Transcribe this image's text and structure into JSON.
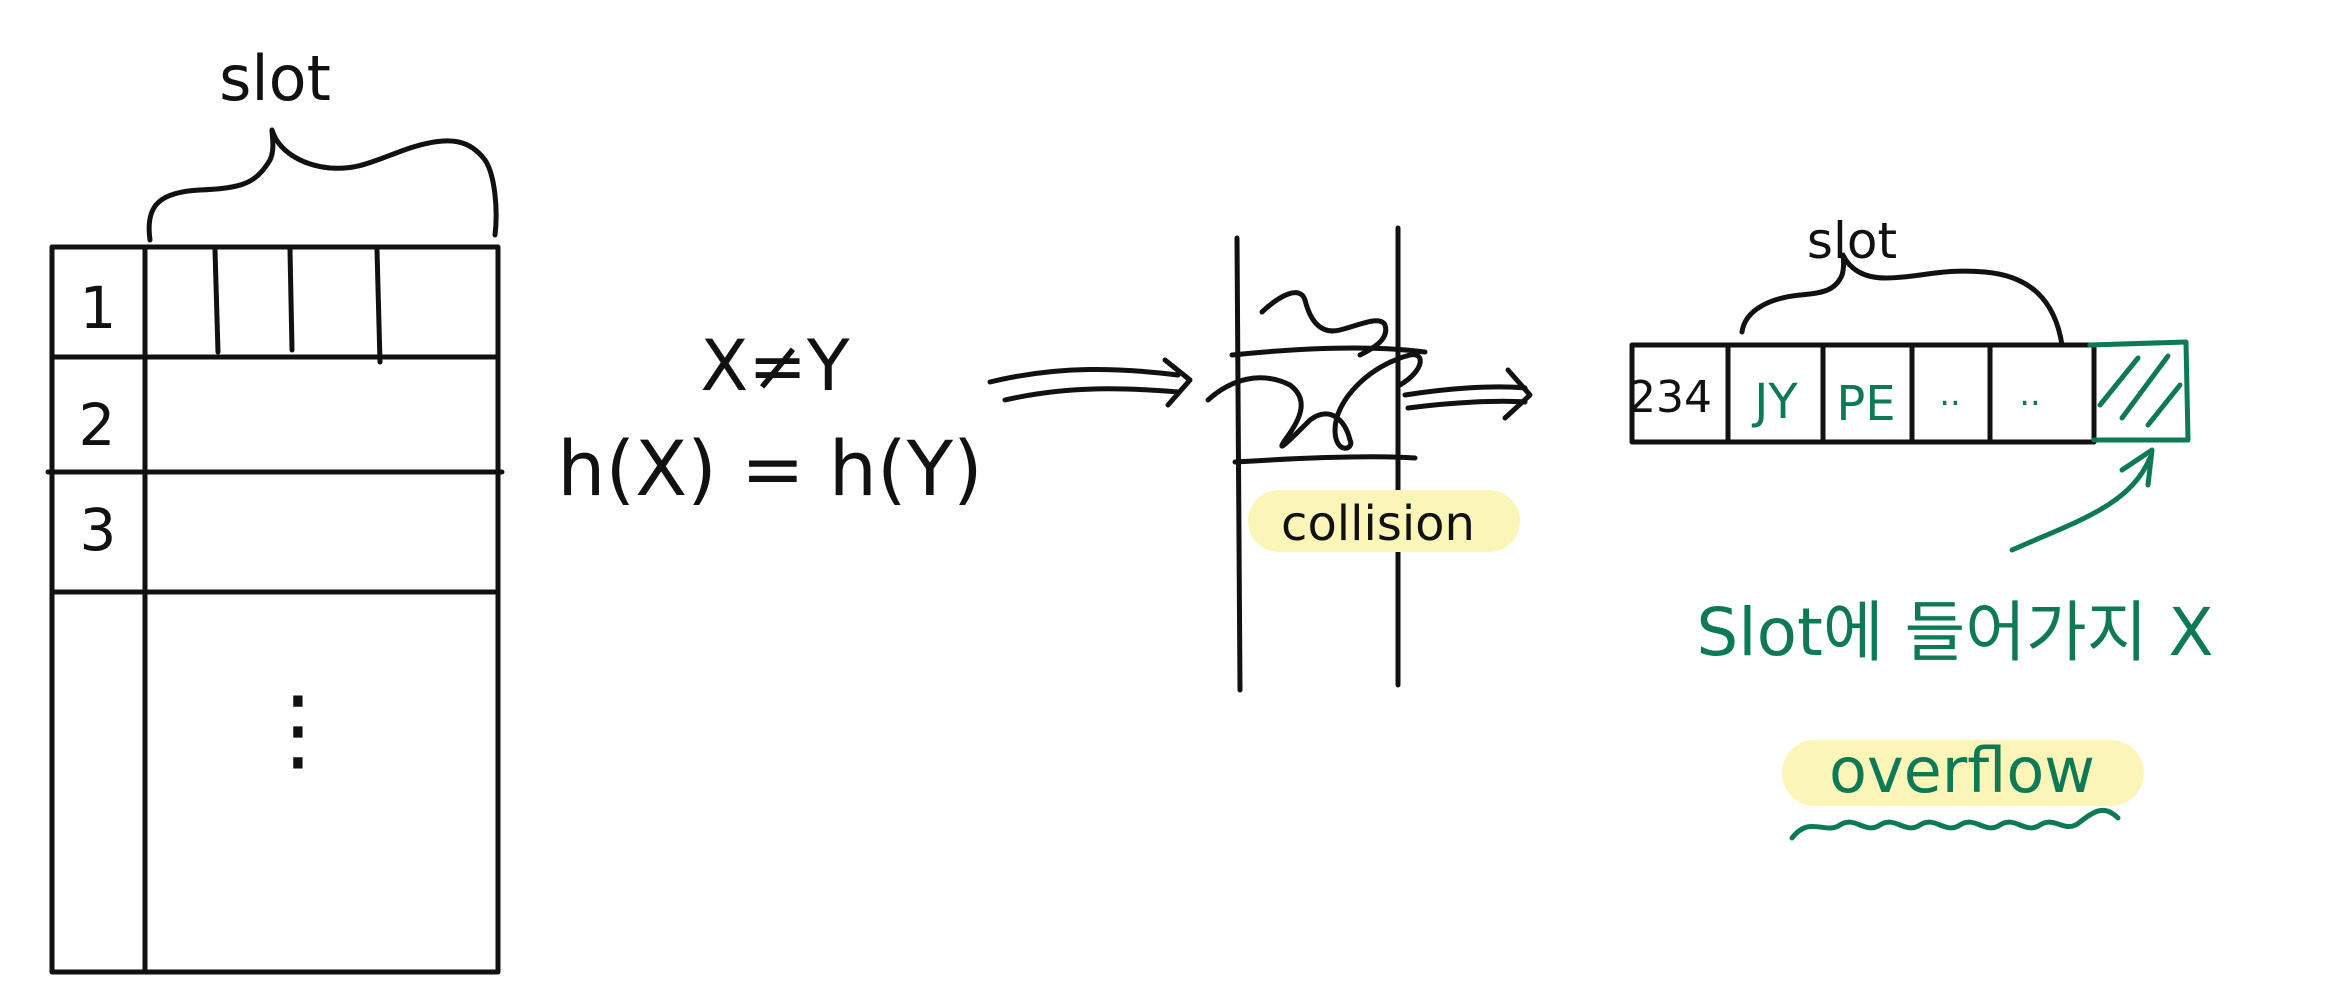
{
  "table": {
    "slot_label": "slot",
    "row_labels": [
      "1",
      "2",
      "3"
    ],
    "ellipsis": "⋮"
  },
  "hash": {
    "inequality": "X≠Y",
    "equality": "h(X) = h(Y)"
  },
  "collision": {
    "label": "collision"
  },
  "bucket": {
    "slot_label": "slot",
    "address": "234",
    "cells": [
      "JY",
      "PE",
      "..",
      ".."
    ]
  },
  "overflow": {
    "note": "Slot에 들어가지 X",
    "label": "overflow"
  },
  "colors": {
    "ink": "#111111",
    "green": "#0e7a55",
    "highlight": "#fbf6b8"
  }
}
